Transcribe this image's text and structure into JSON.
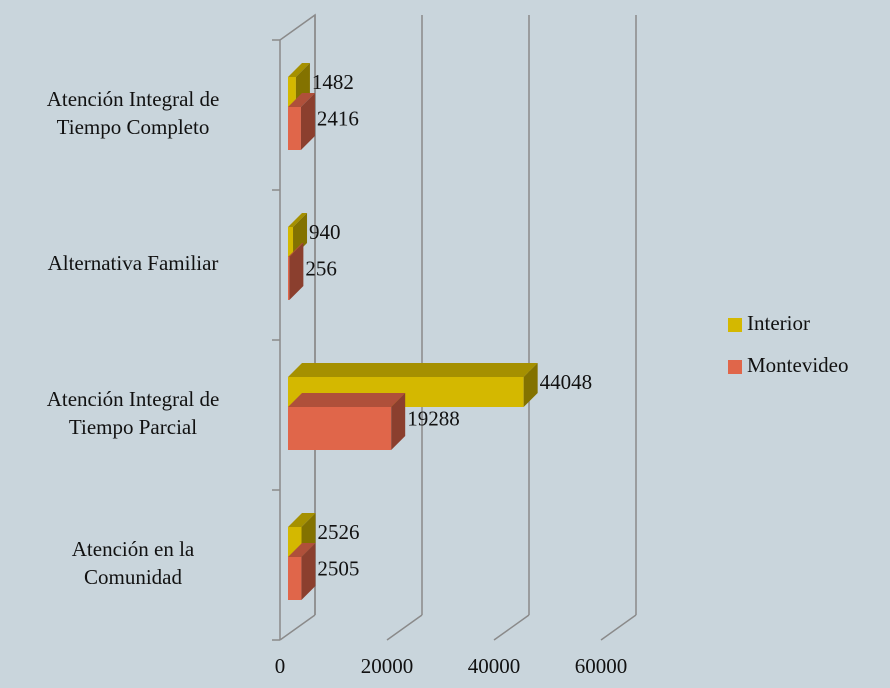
{
  "chart_data": {
    "type": "bar3d_horizontal",
    "categories": [
      [
        "Atención en la",
        "Comunidad"
      ],
      [
        "Atención Integral de",
        "Tiempo Parcial"
      ],
      [
        "Alternativa Familiar"
      ],
      [
        "Atención Integral de",
        "Tiempo Completo"
      ]
    ],
    "series": [
      {
        "name": "Interior",
        "color": "#d4b800",
        "values": [
          2526,
          44048,
          940,
          1482
        ]
      },
      {
        "name": "Montevideo",
        "color": "#e0664a",
        "values": [
          2505,
          19288,
          256,
          2416
        ]
      }
    ],
    "xlim": [
      0,
      60000
    ],
    "xticks": [
      0,
      20000,
      40000,
      60000
    ],
    "legend": "right"
  }
}
